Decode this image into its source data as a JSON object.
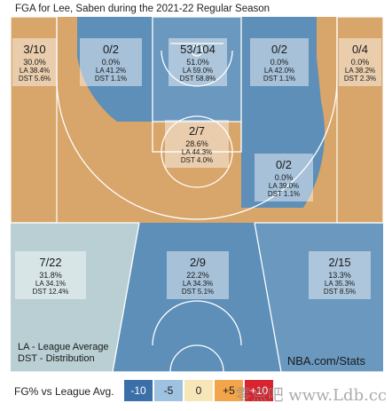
{
  "title": "FGA for Lee, Saben during the 2021-22 Regular Season",
  "footnote": {
    "line1": "LA - League Average",
    "line2": "DST - Distribution",
    "source": "NBA.com/Stats"
  },
  "legend": {
    "label": "FG% vs League Avg.",
    "chips": [
      {
        "text": "-10",
        "bg": "#3a6fa7",
        "fg": "#ffffff"
      },
      {
        "text": "-5",
        "bg": "#9ec2e0",
        "fg": "#1a1a1a"
      },
      {
        "text": "0",
        "bg": "#f7e6b8",
        "fg": "#1a1a1a"
      },
      {
        "text": "+5",
        "bg": "#f2a54a",
        "fg": "#1a1a1a"
      },
      {
        "text": "+10",
        "bg": "#d9232e",
        "fg": "#ffffff"
      }
    ]
  },
  "watermark": "零点吧 www.Ldb.cc",
  "chart_data": {
    "type": "table",
    "zones": [
      {
        "zone": "left-corner-3",
        "fg": "3/10",
        "pct": "30.0%",
        "la": "LA 38.4%",
        "dst": "DST 5.6%"
      },
      {
        "zone": "left-baseline-mid",
        "fg": "0/2",
        "pct": "0.0%",
        "la": "LA 41.2%",
        "dst": "DST 1.1%"
      },
      {
        "zone": "restricted-area",
        "fg": "53/104",
        "pct": "51.0%",
        "la": "LA 59.0%",
        "dst": "DST 58.8%"
      },
      {
        "zone": "right-baseline-mid",
        "fg": "0/2",
        "pct": "0.0%",
        "la": "LA 42.0%",
        "dst": "DST 1.1%"
      },
      {
        "zone": "right-corner-3",
        "fg": "0/4",
        "pct": "0.0%",
        "la": "LA 38.2%",
        "dst": "DST 2.3%"
      },
      {
        "zone": "paint-non-ra",
        "fg": "2/7",
        "pct": "28.6%",
        "la": "LA 44.3%",
        "dst": "DST 4.0%"
      },
      {
        "zone": "right-elbow-mid",
        "fg": "0/2",
        "pct": "0.0%",
        "la": "LA 39.0%",
        "dst": "DST 1.1%"
      },
      {
        "zone": "left-wing-3",
        "fg": "7/22",
        "pct": "31.8%",
        "la": "LA 34.1%",
        "dst": "DST 12.4%"
      },
      {
        "zone": "top-3",
        "fg": "2/9",
        "pct": "22.2%",
        "la": "LA 34.3%",
        "dst": "DST 5.1%"
      },
      {
        "zone": "right-wing-3",
        "fg": "2/15",
        "pct": "13.3%",
        "la": "LA 35.3%",
        "dst": "DST 8.5%"
      }
    ]
  }
}
